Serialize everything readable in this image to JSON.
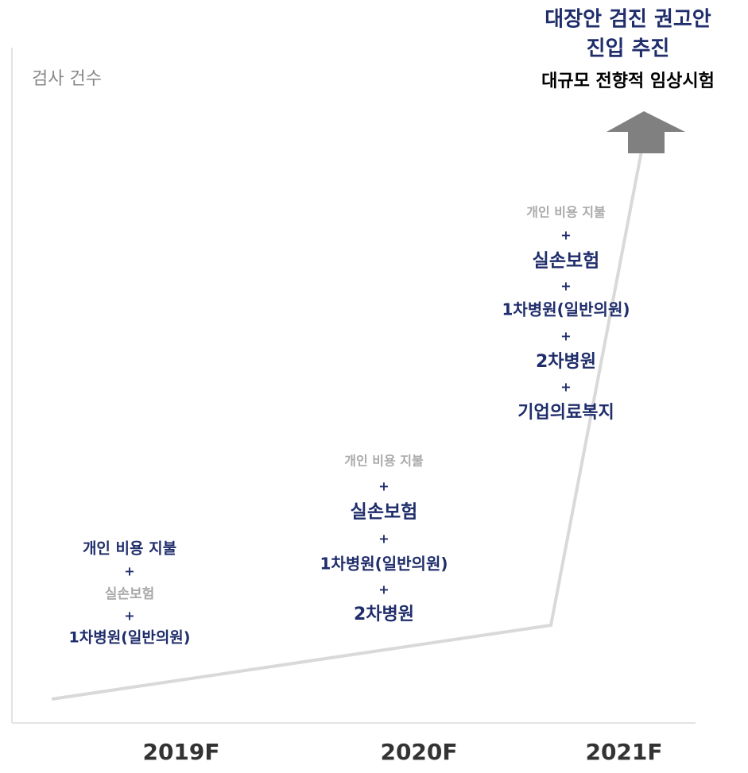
{
  "y_axis_label": "검사 건수",
  "headline": [
    "대장안 검진 권고안",
    "진입 추진"
  ],
  "subheadline": "대규모 전향적 임상시험",
  "columns": [
    {
      "items": [
        "개인 비용 지불",
        "+",
        "실손보험",
        "+",
        "1차병원(일반의원)"
      ]
    },
    {
      "items": [
        "개인 비용 지불",
        "+",
        "실손보험",
        "+",
        "1차병원(일반의원)",
        "+",
        "2차병원"
      ]
    },
    {
      "items": [
        "개인 비용 지불",
        "+",
        "실손보험",
        "+",
        "1차병원(일반의원)",
        "+",
        "2차병원",
        "+",
        "기업의료복지"
      ]
    }
  ],
  "x_labels": [
    "2019F",
    "2020F",
    "2021F"
  ]
}
